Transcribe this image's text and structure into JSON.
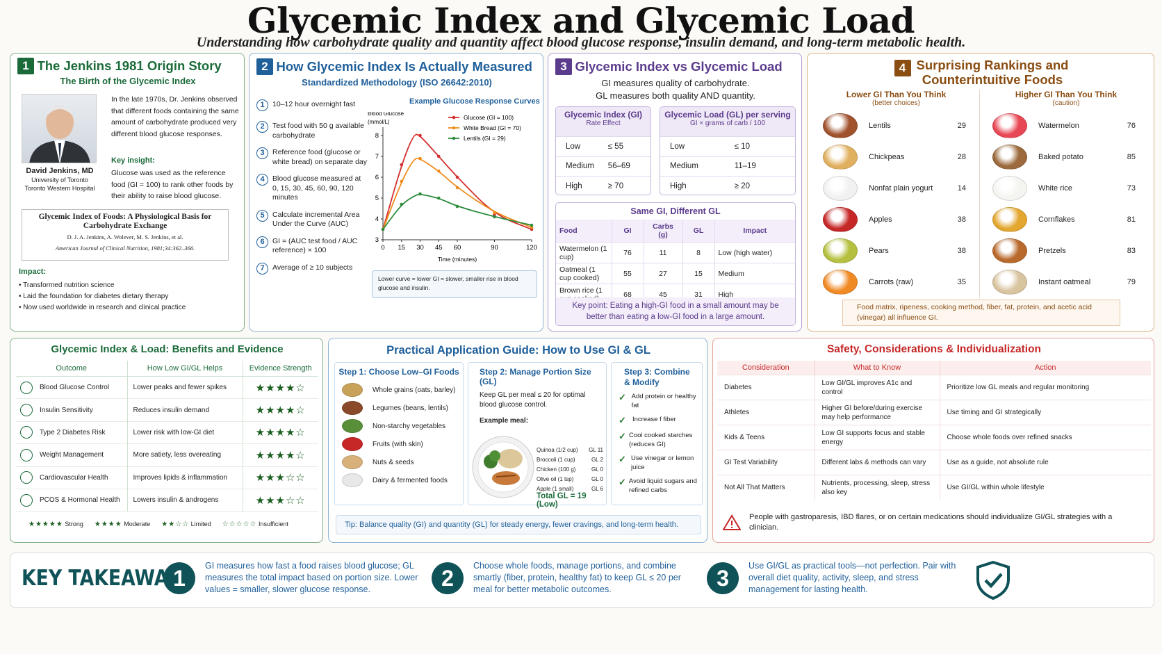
{
  "header": {
    "title": "Glycemic Index and Glycemic Load",
    "subtitle": "Understanding how carbohydrate quality and quantity affect blood glucose response, insulin demand, and long-term metabolic health."
  },
  "p1": {
    "num": "1",
    "title": "The Jenkins 1981 Origin Story",
    "subtitle": "The Birth of the Glycemic Index",
    "intro": "In the late 1970s, Dr. Jenkins observed that different foods containing the same amount of carbohydrate produced very different blood glucose responses.",
    "insight_label": "Key insight:",
    "insight": "Glucose was used as the reference food (GI = 100) to rank other foods by their ability to raise blood glucose.",
    "name": "David Jenkins, MD",
    "aff1": "University of Toronto",
    "aff2": "Toronto Western Hospital",
    "paper_title": "Glycemic Index of Foods: A Physiological Basis for Carbohydrate Exchange",
    "paper_authors": "D. J. A. Jenkins, A. Wolever, M. S. Jenkins, et al.",
    "paper_journal": "American Journal of Clinical Nutrition, 1981;34:362–366.",
    "impact_label": "Impact:",
    "impacts": [
      "Transformed nutrition science",
      "Laid the foundation for diabetes dietary therapy",
      "Now used worldwide in research and clinical practice"
    ]
  },
  "p2": {
    "num": "2",
    "title": "How Glycemic Index Is Actually Measured",
    "subtitle": "Standardized Methodology (ISO 26642:2010)",
    "steps": [
      {
        "n": "1",
        "t": "10–12 hour overnight fast"
      },
      {
        "n": "2",
        "t": "Test food with 50 g available carbohydrate"
      },
      {
        "n": "3",
        "t": "Reference food (glucose or white bread) on separate day"
      },
      {
        "n": "4",
        "t": "Blood glucose measured at 0, 15, 30, 45, 60, 90, 120 minutes"
      },
      {
        "n": "5",
        "t": "Calculate incremental Area Under the Curve (AUC)"
      },
      {
        "n": "6",
        "t": "GI = (AUC test food / AUC reference) × 100"
      },
      {
        "n": "7",
        "t": "Average of ≥ 10 subjects"
      }
    ],
    "note": "Lower curve = lower GI = slower, smaller rise in blood glucose and insulin."
  },
  "chart_data": {
    "type": "line",
    "title": "Example Glucose Response Curves",
    "ylabel": "Blood Glucose (mmol/L)",
    "xlabel": "Time (minutes)",
    "x": [
      0,
      15,
      25,
      30,
      45,
      60,
      90,
      120
    ],
    "xticks": [
      0,
      15,
      30,
      45,
      60,
      90,
      120
    ],
    "yticks": [
      3,
      4,
      5,
      6,
      7,
      8
    ],
    "ylim": [
      3,
      8.4
    ],
    "xlim": [
      0,
      120
    ],
    "series": [
      {
        "name": "Glucose (GI = 100)",
        "color": "#d32f2f",
        "values": [
          3.5,
          6.6,
          8.1,
          8.0,
          7.0,
          6.0,
          4.2,
          3.5
        ]
      },
      {
        "name": "White Bread (GI = 70)",
        "color": "#ef8c1a",
        "values": [
          3.5,
          5.8,
          6.9,
          6.9,
          6.3,
          5.5,
          4.3,
          3.6
        ]
      },
      {
        "name": "Lentils (GI = 29)",
        "color": "#2e8b3c",
        "values": [
          3.5,
          4.7,
          5.1,
          5.2,
          5.0,
          4.6,
          4.1,
          3.7
        ]
      }
    ]
  },
  "p3": {
    "num": "3",
    "title": "Glycemic Index vs Glycemic Load",
    "line1": "GI measures quality of carbohydrate.",
    "line2": "GL measures both quality AND quantity.",
    "gi_head": "Glycemic Index (GI)",
    "gi_sub": "Rate Effect",
    "gi_rows": [
      [
        "Low",
        "≤ 55"
      ],
      [
        "Medium",
        "56–69"
      ],
      [
        "High",
        "≥ 70"
      ]
    ],
    "gl_head": "Glycemic Load (GL) per serving",
    "gl_sub": "GI × grams of carb / 100",
    "gl_rows": [
      [
        "Low",
        "≤ 10"
      ],
      [
        "Medium",
        "11–19"
      ],
      [
        "High",
        "≥ 20"
      ]
    ],
    "same_title": "Same GI, Different GL",
    "same_cols": [
      "Food",
      "GI",
      "Carbs (g)",
      "GL",
      "Impact"
    ],
    "same_rows": [
      [
        "Watermelon (1 cup)",
        "76",
        "11",
        "8",
        "Low (high water)"
      ],
      [
        "Oatmeal (1 cup cooked)",
        "55",
        "27",
        "15",
        "Medium"
      ],
      [
        "Brown rice (1 cup cooked)",
        "68",
        "45",
        "31",
        "High"
      ]
    ],
    "key_point": "Key point: Eating a high-GI food in a small amount may be better than eating a low-GI food in a large amount."
  },
  "p4": {
    "num": "4",
    "title1": "Surprising Rankings and",
    "title2": "Counterintuitive Foods",
    "lower_head": "Lower GI Than You Think",
    "lower_sub": "(better choices)",
    "higher_head": "Higher GI Than You Think",
    "higher_sub": "(caution)",
    "lower": [
      [
        "Lentils",
        "29"
      ],
      [
        "Chickpeas",
        "28"
      ],
      [
        "Nonfat plain yogurt",
        "14"
      ],
      [
        "Apples",
        "38"
      ],
      [
        "Pears",
        "38"
      ],
      [
        "Carrots (raw)",
        "35"
      ]
    ],
    "higher": [
      [
        "Watermelon",
        "76"
      ],
      [
        "Baked potato",
        "85"
      ],
      [
        "White rice",
        "73"
      ],
      [
        "Cornflakes",
        "81"
      ],
      [
        "Pretzels",
        "83"
      ],
      [
        "Instant oatmeal",
        "79"
      ]
    ],
    "note": "Food matrix, ripeness, cooking method, fiber, fat, protein, and acetic acid (vinegar) all influence GI."
  },
  "p5": {
    "title": "Glycemic Index & Load: Benefits and Evidence",
    "cols": [
      "Outcome",
      "How Low GI/GL Helps",
      "Evidence Strength"
    ],
    "rows": [
      {
        "o": "Blood Glucose Control",
        "h": "Lower peaks and fewer spikes",
        "s": "★★★★☆",
        "icon": "glucose-meter-icon"
      },
      {
        "o": "Insulin Sensitivity",
        "h": "Reduces insulin demand",
        "s": "★★★★☆",
        "icon": "drop-icon"
      },
      {
        "o": "Type 2 Diabetes Risk",
        "h": "Lower risk with low-GI diet",
        "s": "★★★★☆",
        "icon": "shield-icon"
      },
      {
        "o": "Weight Management",
        "h": "More satiety, less overeating",
        "s": "★★★★☆",
        "icon": "scale-icon"
      },
      {
        "o": "Cardiovascular Health",
        "h": "Improves lipids & inflammation",
        "s": "★★★☆☆",
        "icon": "heart-icon"
      },
      {
        "o": "PCOS & Hormonal Health",
        "h": "Lowers insulin & androgens",
        "s": "★★★☆☆",
        "icon": "hormone-icon"
      }
    ],
    "legend": [
      {
        "s": "★★★★★",
        "l": "Strong"
      },
      {
        "s": "★★★★",
        "l": "Moderate"
      },
      {
        "s": "★★☆☆",
        "l": "Limited"
      },
      {
        "s": "☆☆☆☆☆",
        "l": "Insufficient"
      }
    ]
  },
  "p6": {
    "title": "Practical Application Guide: How to Use GI & GL",
    "step1": "Step 1:  Choose Low–GI Foods",
    "foods": [
      "Whole grains (oats, barley)",
      "Legumes (beans, lentils)",
      "Non-starchy vegetables",
      "Fruits (with skin)",
      "Nuts & seeds",
      "Dairy & fermented foods"
    ],
    "step2": "Step 2: Manage Portion Size (GL)",
    "step2_text": "Keep GL per meal ≤ 20 for optimal blood glucose control.",
    "meal_label": "Example meal:",
    "meal": [
      [
        "Quinoa (1/2 cup)",
        "GL 11"
      ],
      [
        "Broccoli (1 cup)",
        "GL 2"
      ],
      [
        "Chicken (100 g)",
        "GL 0"
      ],
      [
        "Olive oil (1 tsp)",
        "GL 0"
      ],
      [
        "Apple (1 small)",
        "GL 6"
      ]
    ],
    "total": "Total GL = 19 (Low)",
    "step3": "Step 3: Combine & Modify",
    "tips": [
      "Add protein or healthy fat",
      "Increase f fiber",
      "Cool cooked starches (reduces GI)",
      "Use vinegar or lemon juice",
      "Avoid liquid sugars and refined carbs"
    ],
    "footer": "Tip: Balance quality (GI) and quantity (GL) for steady energy, fewer cravings, and long-term health."
  },
  "p7": {
    "title": "Safety, Considerations & Individualization",
    "cols": [
      "Consideration",
      "What to Know",
      "Action"
    ],
    "rows": [
      [
        "Diabetes",
        "Low GI/GL improves A1c and control",
        "Prioritize low GL meals and regular monitoring"
      ],
      [
        "Athletes",
        "Higher GI before/during exercise may help performance",
        "Use timing and GI strategically"
      ],
      [
        "Kids & Teens",
        "Low GI supports focus and stable energy",
        "Choose whole foods over refined snacks"
      ],
      [
        "GI Test Variability",
        "Different labs & methods can vary",
        "Use as a guide, not absolute rule"
      ],
      [
        "Not All That Matters",
        "Nutrients, processing, sleep, stress also key",
        "Use GI/GL within whole lifestyle"
      ]
    ],
    "warning": "People with gastroparesis, IBD flares, or on certain medications should individualize GI/GL strategies with a clinician."
  },
  "takeaways": {
    "label": "KEY TAKEAWAYS",
    "items": [
      {
        "n": "1",
        "t": "GI measures how fast a food raises blood glucose; GL measures the total impact based on portion size. Lower values = smaller, slower glucose response."
      },
      {
        "n": "2",
        "t": "Choose whole foods, manage portions, and combine smartly (fiber, protein, healthy fat) to keep GL ≤ 20 per meal for better metabolic outcomes."
      },
      {
        "n": "3",
        "t": "Use GI/GL as practical tools—not perfection. Pair with overall diet quality, activity, sleep, and stress management for lasting health."
      }
    ]
  },
  "colors": {
    "green": "#1b6b3a",
    "blue": "#1f5f9a",
    "purple": "#5b3b8c",
    "brown": "#8a4d12",
    "red": "#c62828",
    "teal": "#0f5257"
  }
}
